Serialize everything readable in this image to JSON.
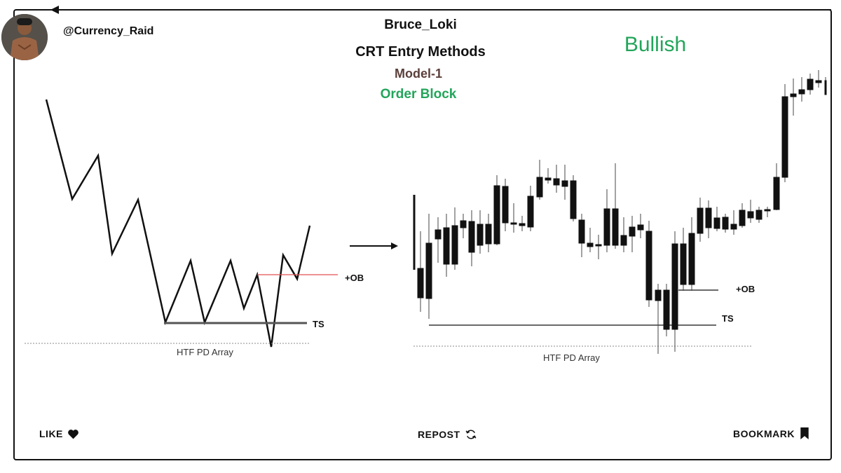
{
  "post": {
    "handle": "@Currency_Raid",
    "author": "Bruce_Loki",
    "title": "CRT Entry Methods",
    "model": "Model-1",
    "subtitle": "Order Block",
    "bias": "Bullish"
  },
  "left_diagram": {
    "ob_label": "+OB",
    "ts_label": "TS",
    "htf_label": "HTF PD Array"
  },
  "right_chart": {
    "ob_label": "+OB",
    "ts_label": "TS",
    "htf_label": "HTF PD Array"
  },
  "actions": {
    "like": "LIKE",
    "repost": "REPOST",
    "bookmark": "BOOKMARK"
  },
  "colors": {
    "accent_green": "#22a55a",
    "model_brown": "#5b3f3a",
    "ob_line_red": "#e05050"
  },
  "icons": [
    "heart-icon",
    "repost-icon",
    "bookmark-icon",
    "arrow-left-icon",
    "arrow-right-icon"
  ]
}
